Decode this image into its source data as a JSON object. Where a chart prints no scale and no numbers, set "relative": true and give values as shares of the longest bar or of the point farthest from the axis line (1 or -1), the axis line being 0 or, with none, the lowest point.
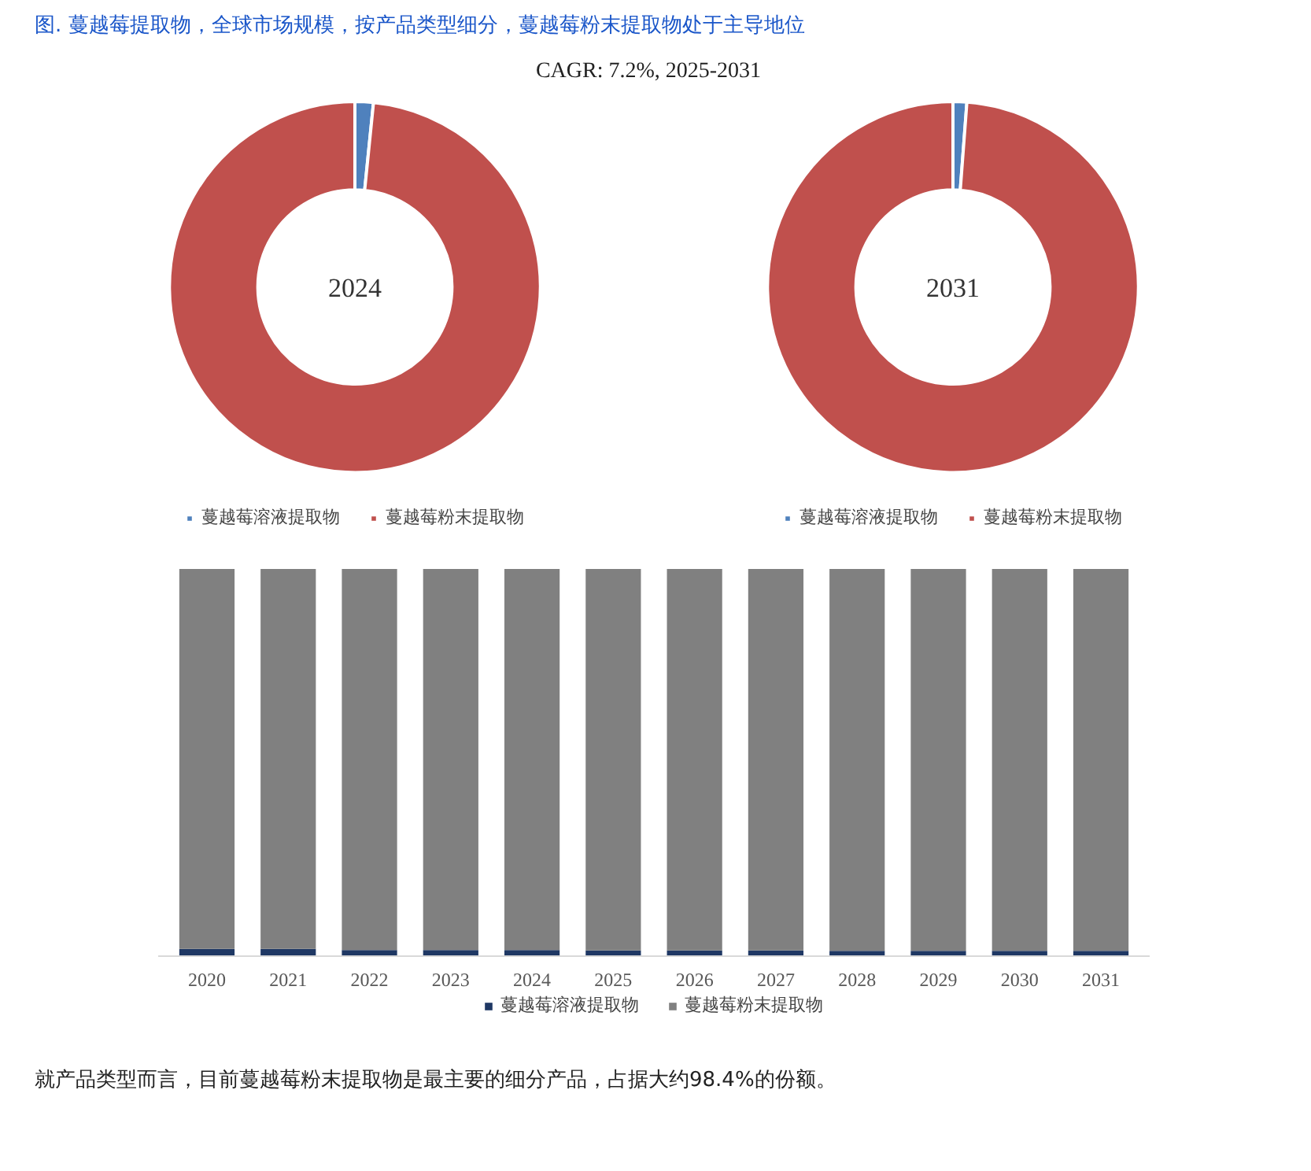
{
  "chart_data": [
    {
      "type": "donut",
      "title": "图. 蔓越莓提取物，全球市场规模，按产品类型细分，蔓越莓粉末提取物处于主导地位",
      "annotations": [
        "CAGR:  7.2%, 2025-2031",
        "2024"
      ],
      "categories": [
        "蔓越莓溶液提取物",
        "蔓越莓粉末提取物"
      ],
      "values": [
        1.6,
        98.4
      ],
      "colors": [
        "#4f81bd",
        "#c0504d"
      ],
      "legend": "bottom"
    },
    {
      "type": "donut",
      "annotations": [
        "2031"
      ],
      "categories": [
        "蔓越莓溶液提取物",
        "蔓越莓粉末提取物"
      ],
      "values": [
        1.2,
        98.8
      ],
      "colors": [
        "#4f81bd",
        "#c0504d"
      ],
      "legend": "bottom"
    },
    {
      "type": "bar",
      "stacked": true,
      "relative": true,
      "categories": [
        "2020",
        "2021",
        "2022",
        "2023",
        "2024",
        "2025",
        "2026",
        "2027",
        "2028",
        "2029",
        "2030",
        "2031"
      ],
      "series": [
        {
          "name": "蔓越莓溶液提取物",
          "color": "#1f3864",
          "values": [
            0.018,
            0.018,
            0.015,
            0.015,
            0.015,
            0.014,
            0.014,
            0.014,
            0.013,
            0.013,
            0.013,
            0.013
          ]
        },
        {
          "name": "蔓越莓粉末提取物",
          "color": "#808080",
          "values": [
            0.982,
            0.982,
            0.985,
            0.985,
            0.985,
            0.986,
            0.986,
            0.986,
            0.987,
            0.987,
            0.987,
            0.987
          ]
        }
      ],
      "legend": "bottom",
      "annotations": [
        "就产品类型而言，目前蔓越莓粉末提取物是最主要的细分产品，占据大约98.4%的份额。"
      ]
    }
  ]
}
